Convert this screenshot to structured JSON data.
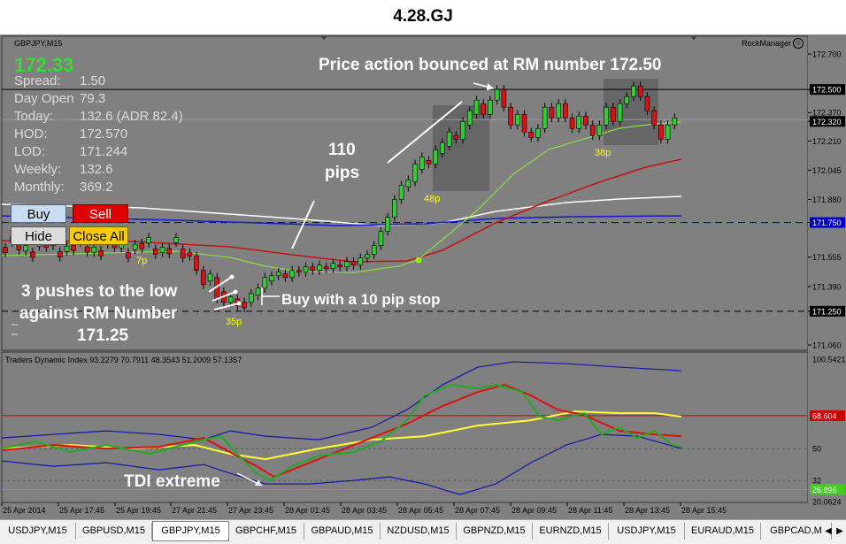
{
  "page_title": "4.28.GJ",
  "chart": {
    "symbol_label": "GBPJPY,M15",
    "indicator_label": "RockManager",
    "price_big": "172.33",
    "price_big_color": "#33dd33",
    "info": [
      {
        "label": "Spread:",
        "value": "1.50"
      },
      {
        "label": "Day Open",
        "value": "79.3"
      },
      {
        "label": "Today:",
        "value": "132.6 (ADR 82.4)"
      },
      {
        "label": "HOD:",
        "value": "172.570"
      },
      {
        "label": "LOD:",
        "value": "171.244"
      },
      {
        "label": "Weekly:",
        "value": "132.6"
      },
      {
        "label": "Monthly:",
        "value": "369.2"
      }
    ],
    "buttons": {
      "buy": "Buy",
      "sell": "Sell",
      "hide": "Hide",
      "close_all": "Close All"
    },
    "annotations": {
      "bounce": "Price action bounced at RM number 172.50",
      "pips_value": "110",
      "pips_unit": "pips",
      "pushes_line1": "3 pushes to the low",
      "pushes_line2": "against RM Number",
      "pushes_line3": "171.25",
      "buy_stop": "Buy with a 10 pip stop",
      "tdi_extreme": "TDI extreme",
      "tag_7p": "7p",
      "tag_35p": "35p",
      "tag_48p": "48p",
      "tag_38p": "38p"
    },
    "price_axis": [
      "172.700",
      "172.500",
      "172.370",
      "172.320",
      "172.210",
      "172.045",
      "171.880",
      "171.750",
      "171.555",
      "171.390",
      "171.250",
      "171.060"
    ],
    "highlighted_levels": [
      "172.500",
      "172.320",
      "171.750",
      "171.250"
    ],
    "tdi_label": "Traders Dynamic Index 93.2279 70.7911 48.3543 51.2009 57.1357",
    "tdi_axis": [
      "100.5421",
      "68.604",
      "50",
      "32",
      "26.896",
      "20.0624"
    ],
    "time_axis": [
      "25 Apr 2014",
      "25 Apr 17:45",
      "25 Apr 19:45",
      "27 Apr 21:45",
      "27 Apr 23:45",
      "28 Apr 01:45",
      "28 Apr 03:45",
      "28 Apr 05:45",
      "28 Apr 07:45",
      "28 Apr 09:45",
      "28 Apr 11:45",
      "28 Apr 13:45",
      "28 Apr 15:45"
    ],
    "colors": {
      "background": "#808080",
      "bull_candle": "#33cc33",
      "bear_candle": "#dd1111",
      "rm_level": "#000000",
      "blue_level": "#0000cc",
      "tdi_red_line": "#cc0000",
      "annotation_text": "#ffffff",
      "pip_tag": "#ffff00"
    }
  },
  "tabs": [
    "USDJPY,M15",
    "GBPUSD,M15",
    "GBPJPY,M15",
    "GBPCHF,M15",
    "GBPAUD,M15",
    "NZDUSD,M15",
    "GBPNZD,M15",
    "EURNZD,M15",
    "USDJPY,M15",
    "EURAUD,M15",
    "GBPCAD,M"
  ],
  "active_tab_index": 2
}
